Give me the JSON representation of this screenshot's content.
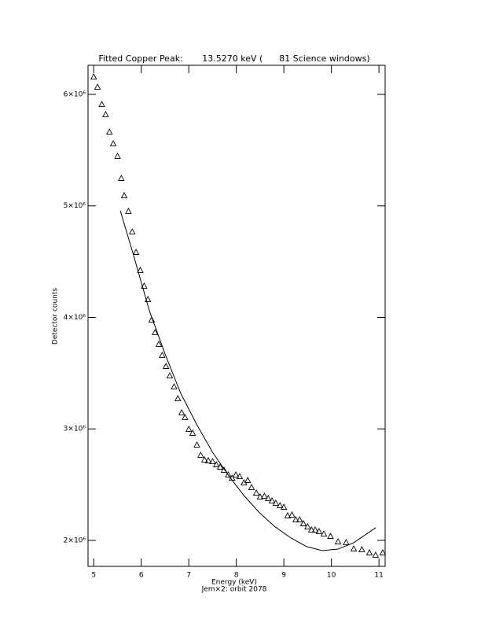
{
  "chart_data": {
    "type": "scatter",
    "title": "Fitted Copper Peak:       13.5270 keV (      81 Science windows)",
    "x_label": "Energy (keV)",
    "subtitle": "Jem×2: orbit 2078",
    "y_label": "Detector counts",
    "xlim": [
      4.88,
      11.13
    ],
    "ylim": [
      1767000,
      6261000
    ],
    "xticks": [
      5,
      6,
      7,
      8,
      9,
      10,
      11
    ],
    "yticks": [
      {
        "value": 2000000,
        "label": "2×10⁶"
      },
      {
        "value": 3000000,
        "label": "3×10⁶"
      },
      {
        "value": 4000000,
        "label": "4×10⁶"
      },
      {
        "value": 5000000,
        "label": "5×10⁶"
      },
      {
        "value": 6000000,
        "label": "6×10⁶"
      }
    ],
    "series": [
      {
        "color": "#000000",
        "marker": "triangle",
        "x": [
          5.0,
          5.08,
          5.17,
          5.25,
          5.33,
          5.41,
          5.5,
          5.58,
          5.64,
          5.73,
          5.81,
          5.89,
          5.98,
          6.06,
          6.14,
          6.22,
          6.29,
          6.37,
          6.44,
          6.52,
          6.6,
          6.69,
          6.77,
          6.85,
          6.92,
          7.0,
          7.08,
          7.17,
          7.25,
          7.33,
          7.41,
          7.5,
          7.58,
          7.66,
          7.74,
          7.83,
          7.91,
          7.99,
          8.07,
          8.16,
          8.24,
          8.32,
          8.42,
          8.5,
          8.59,
          8.67,
          8.75,
          8.83,
          8.92,
          9.0,
          9.08,
          9.17,
          9.25,
          9.33,
          9.41,
          9.5,
          9.58,
          9.66,
          9.74,
          9.84,
          9.98,
          10.14,
          10.31,
          10.47,
          10.64,
          10.8,
          10.93,
          11.08
        ],
        "values": [
          6155000,
          6063000,
          5908000,
          5817000,
          5661000,
          5556000,
          5443000,
          5245000,
          5090000,
          4949000,
          4765000,
          4582000,
          4420000,
          4279000,
          4159000,
          3975000,
          3862000,
          3757000,
          3658000,
          3559000,
          3474000,
          3376000,
          3270000,
          3143000,
          3101000,
          2995000,
          2959000,
          2854000,
          2762000,
          2720000,
          2713000,
          2705000,
          2677000,
          2656000,
          2628000,
          2586000,
          2557000,
          2586000,
          2571000,
          2515000,
          2536000,
          2473000,
          2423000,
          2388000,
          2395000,
          2374000,
          2353000,
          2332000,
          2310000,
          2296000,
          2219000,
          2226000,
          2183000,
          2183000,
          2148000,
          2120000,
          2092000,
          2092000,
          2078000,
          2056000,
          2035000,
          1986000,
          1979000,
          1922000,
          1915000,
          1887000,
          1866000,
          1887000
        ]
      },
      {
        "color": "#000000",
        "marker": "line",
        "x": [
          5.56,
          5.84,
          6.17,
          6.5,
          6.83,
          7.17,
          7.5,
          7.83,
          8.16,
          8.49,
          8.82,
          9.15,
          9.48,
          9.81,
          10.14,
          10.47,
          10.93
        ],
        "values": [
          4956000,
          4554000,
          4060000,
          3672000,
          3319000,
          3037000,
          2790000,
          2586000,
          2402000,
          2247000,
          2120000,
          2021000,
          1944000,
          1908000,
          1922000,
          1979000,
          2113000
        ]
      }
    ]
  }
}
